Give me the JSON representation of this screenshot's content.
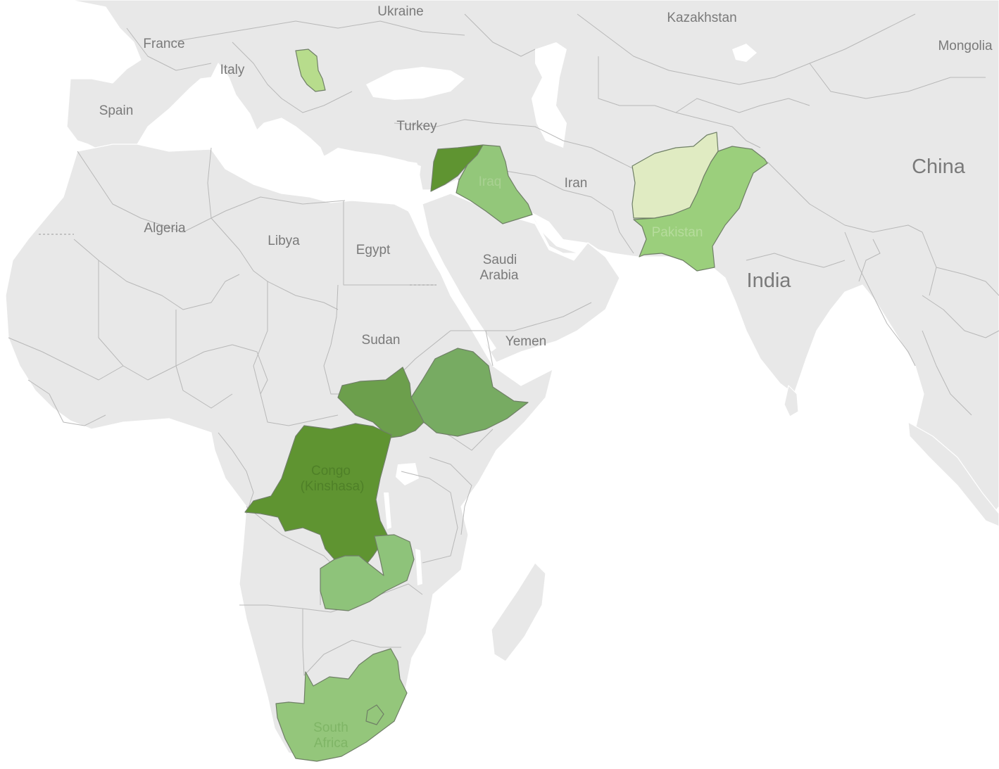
{
  "map": {
    "labels": {
      "ukraine": "Ukraine",
      "kazakhstan": "Kazakhstan",
      "france": "France",
      "mongolia": "Mongolia",
      "italy": "Italy",
      "spain": "Spain",
      "turkey": "Turkey",
      "china": "China",
      "iran": "Iran",
      "iraq": "Iraq",
      "algeria": "Algeria",
      "libya": "Libya",
      "egypt": "Egypt",
      "saudi_line1": "Saudi",
      "saudi_line2": "Arabia",
      "pakistan": "Pakistan",
      "india": "India",
      "sudan": "Sudan",
      "yemen": "Yemen",
      "congo_line1": "Congo",
      "congo_line2": "(Kinshasa)",
      "south_africa_line1": "South",
      "south_africa_line2": "Africa"
    },
    "colors": {
      "land": "#e8e8e8",
      "water": "#ffffff",
      "border": "#b8b8b8",
      "label": "#7a7a7a"
    },
    "highlighted": [
      {
        "country": "Serbia",
        "fill": "#b7dc8c"
      },
      {
        "country": "Syria",
        "fill": "#5f9431"
      },
      {
        "country": "Iraq",
        "fill": "#93c77a"
      },
      {
        "country": "Afghanistan",
        "fill": "#e0ebc2"
      },
      {
        "country": "Pakistan",
        "fill": "#9bcf7c"
      },
      {
        "country": "South Sudan",
        "fill": "#6c9f4c"
      },
      {
        "country": "Ethiopia",
        "fill": "#77ab62"
      },
      {
        "country": "Congo (Kinshasa)",
        "fill": "#5f9431"
      },
      {
        "country": "Zambia",
        "fill": "#8ec37a"
      },
      {
        "country": "South Africa",
        "fill": "#94c67b"
      }
    ]
  }
}
